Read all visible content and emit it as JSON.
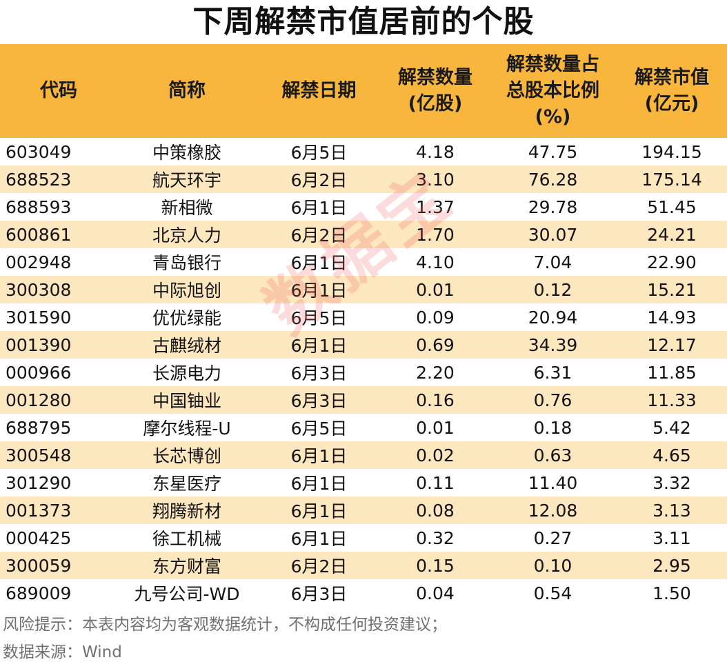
{
  "page_title": "下周解禁市值居前的个股",
  "table": {
    "headers": [
      "代码",
      "简称",
      "解禁日期",
      "解禁数量\n(亿股)",
      "解禁数量占\n总股本比例\n(%)",
      "解禁市值\n(亿元)"
    ],
    "rows": [
      [
        "603049",
        "中策橡胶",
        "6月5日",
        "4.18",
        "47.75",
        "194.15"
      ],
      [
        "688523",
        "航天环宇",
        "6月2日",
        "3.10",
        "76.28",
        "175.14"
      ],
      [
        "688593",
        "新相微",
        "6月1日",
        "1.37",
        "29.78",
        "51.45"
      ],
      [
        "600861",
        "北京人力",
        "6月2日",
        "1.70",
        "30.07",
        "24.21"
      ],
      [
        "002948",
        "青岛银行",
        "6月1日",
        "4.10",
        "7.04",
        "22.90"
      ],
      [
        "300308",
        "中际旭创",
        "6月1日",
        "0.01",
        "0.12",
        "15.21"
      ],
      [
        "301590",
        "优优绿能",
        "6月5日",
        "0.09",
        "20.94",
        "14.93"
      ],
      [
        "001390",
        "古麒绒材",
        "6月1日",
        "0.69",
        "34.39",
        "12.17"
      ],
      [
        "000966",
        "长源电力",
        "6月3日",
        "2.20",
        "6.31",
        "11.85"
      ],
      [
        "001280",
        "中国铀业",
        "6月3日",
        "0.16",
        "0.76",
        "11.33"
      ],
      [
        "688795",
        "摩尔线程-U",
        "6月5日",
        "0.01",
        "0.18",
        "5.42"
      ],
      [
        "300548",
        "长芯博创",
        "6月1日",
        "0.02",
        "0.63",
        "4.65"
      ],
      [
        "301290",
        "东星医疗",
        "6月1日",
        "0.11",
        "11.40",
        "3.32"
      ],
      [
        "001373",
        "翔腾新材",
        "6月1日",
        "0.08",
        "12.08",
        "3.13"
      ],
      [
        "000425",
        "徐工机械",
        "6月1日",
        "0.32",
        "0.27",
        "3.11"
      ],
      [
        "300059",
        "东方财富",
        "6月2日",
        "0.15",
        "0.10",
        "2.95"
      ],
      [
        "689009",
        "九号公司-WD",
        "6月3日",
        "0.04",
        "0.54",
        "1.50"
      ]
    ]
  },
  "chart_data": {
    "type": "table",
    "title": "下周解禁市值居前的个股",
    "columns": [
      "代码",
      "简称",
      "解禁日期",
      "解禁数量(亿股)",
      "解禁数量占总股本比例(%)",
      "解禁市值(亿元)"
    ],
    "rows": [
      [
        "603049",
        "中策橡胶",
        "6月5日",
        4.18,
        47.75,
        194.15
      ],
      [
        "688523",
        "航天环宇",
        "6月2日",
        3.1,
        76.28,
        175.14
      ],
      [
        "688593",
        "新相微",
        "6月1日",
        1.37,
        29.78,
        51.45
      ],
      [
        "600861",
        "北京人力",
        "6月2日",
        1.7,
        30.07,
        24.21
      ],
      [
        "002948",
        "青岛银行",
        "6月1日",
        4.1,
        7.04,
        22.9
      ],
      [
        "300308",
        "中际旭创",
        "6月1日",
        0.01,
        0.12,
        15.21
      ],
      [
        "301590",
        "优优绿能",
        "6月5日",
        0.09,
        20.94,
        14.93
      ],
      [
        "001390",
        "古麒绒材",
        "6月1日",
        0.69,
        34.39,
        12.17
      ],
      [
        "000966",
        "长源电力",
        "6月3日",
        2.2,
        6.31,
        11.85
      ],
      [
        "001280",
        "中国铀业",
        "6月3日",
        0.16,
        0.76,
        11.33
      ],
      [
        "688795",
        "摩尔线程-U",
        "6月5日",
        0.01,
        0.18,
        5.42
      ],
      [
        "300548",
        "长芯博创",
        "6月1日",
        0.02,
        0.63,
        4.65
      ],
      [
        "301290",
        "东星医疗",
        "6月1日",
        0.11,
        11.4,
        3.32
      ],
      [
        "001373",
        "翔腾新材",
        "6月1日",
        0.08,
        12.08,
        3.13
      ],
      [
        "000425",
        "徐工机械",
        "6月1日",
        0.32,
        0.27,
        3.11
      ],
      [
        "300059",
        "东方财富",
        "6月2日",
        0.15,
        0.1,
        2.95
      ],
      [
        "689009",
        "九号公司-WD",
        "6月3日",
        0.04,
        0.54,
        1.5
      ]
    ]
  },
  "watermark": "数据宝",
  "footer": {
    "risk_note": "风险提示：本表内容均为客观数据统计，不构成任何投资建议；",
    "source": "数据来源：Wind"
  },
  "colors": {
    "header_bg": "#f9b63d",
    "stripe_bg": "#fde7bf",
    "watermark": "#eb5a5a"
  }
}
